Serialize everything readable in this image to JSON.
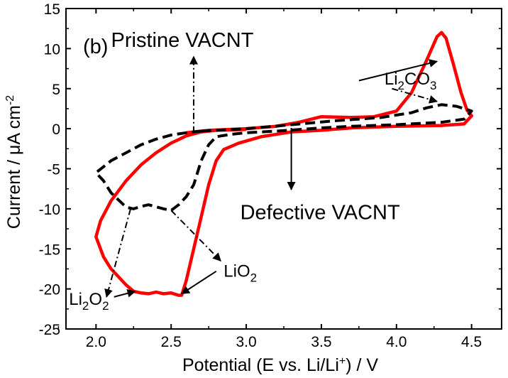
{
  "chart_data": {
    "type": "line",
    "panel_label": "(b)",
    "xlabel": {
      "pre": "Potential (E vs. Li/Li",
      "sup": "+",
      "post": ") / V"
    },
    "ylabel": {
      "pre": "Current / μA cm",
      "sup": "-2"
    },
    "xlim": [
      1.8,
      4.7
    ],
    "ylim": [
      -25,
      15
    ],
    "x_ticks": [
      {
        "v": 2.0,
        "label": "2.0"
      },
      {
        "v": 2.5,
        "label": "2.5"
      },
      {
        "v": 3.0,
        "label": "3.0"
      },
      {
        "v": 3.5,
        "label": "3.5"
      },
      {
        "v": 4.0,
        "label": "4.0"
      },
      {
        "v": 4.5,
        "label": "4.5"
      }
    ],
    "y_ticks": [
      {
        "v": 15,
        "label": "15"
      },
      {
        "v": 10,
        "label": "10"
      },
      {
        "v": 5,
        "label": "5"
      },
      {
        "v": 0,
        "label": "0"
      },
      {
        "v": -5,
        "label": "-5"
      },
      {
        "v": -10,
        "label": "-10"
      },
      {
        "v": -15,
        "label": "-15"
      },
      {
        "v": -20,
        "label": "-20"
      },
      {
        "v": -25,
        "label": "-25"
      }
    ],
    "grid": false,
    "series": [
      {
        "color": "#ff0000",
        "style": "solid",
        "points": [
          [
            2.6,
            -0.5
          ],
          [
            2.75,
            -0.2
          ],
          [
            3.0,
            0.0
          ],
          [
            3.2,
            0.3
          ],
          [
            3.35,
            0.8
          ],
          [
            3.5,
            1.5
          ],
          [
            3.7,
            1.4
          ],
          [
            3.85,
            1.5
          ],
          [
            4.0,
            2.2
          ],
          [
            4.1,
            4.5
          ],
          [
            4.2,
            8.5
          ],
          [
            4.27,
            11.5
          ],
          [
            4.3,
            12.0
          ],
          [
            4.33,
            11.3
          ],
          [
            4.38,
            8.0
          ],
          [
            4.43,
            4.5
          ],
          [
            4.47,
            2.3
          ],
          [
            4.5,
            1.6
          ],
          [
            4.45,
            0.6
          ],
          [
            4.3,
            0.4
          ],
          [
            4.0,
            0.3
          ],
          [
            3.7,
            0.1
          ],
          [
            3.5,
            -0.2
          ],
          [
            3.3,
            -0.4
          ],
          [
            3.1,
            -1.0
          ],
          [
            2.95,
            -1.8
          ],
          [
            2.85,
            -2.6
          ],
          [
            2.8,
            -4.0
          ],
          [
            2.75,
            -7.0
          ],
          [
            2.7,
            -11.0
          ],
          [
            2.65,
            -15.0
          ],
          [
            2.6,
            -19.0
          ],
          [
            2.57,
            -20.8
          ],
          [
            2.55,
            -20.8
          ],
          [
            2.5,
            -20.5
          ],
          [
            2.45,
            -20.6
          ],
          [
            2.4,
            -20.4
          ],
          [
            2.35,
            -20.6
          ],
          [
            2.3,
            -20.5
          ],
          [
            2.25,
            -20.3
          ],
          [
            2.2,
            -19.5
          ],
          [
            2.1,
            -17.5
          ],
          [
            2.05,
            -16.0
          ],
          [
            2.0,
            -13.5
          ],
          [
            2.03,
            -11.5
          ],
          [
            2.1,
            -9.0
          ],
          [
            2.2,
            -6.5
          ],
          [
            2.3,
            -4.5
          ],
          [
            2.4,
            -3.0
          ],
          [
            2.5,
            -1.8
          ],
          [
            2.6,
            -0.9
          ],
          [
            2.7,
            -0.4
          ],
          [
            2.8,
            -0.2
          ],
          [
            3.0,
            -0.1
          ]
        ]
      },
      {
        "color": "#000000",
        "style": "dashed",
        "points": [
          [
            2.7,
            -0.3
          ],
          [
            3.0,
            0.0
          ],
          [
            3.3,
            0.5
          ],
          [
            3.6,
            1.0
          ],
          [
            3.9,
            1.4
          ],
          [
            4.1,
            2.0
          ],
          [
            4.2,
            2.6
          ],
          [
            4.3,
            3.0
          ],
          [
            4.4,
            2.8
          ],
          [
            4.5,
            2.2
          ],
          [
            4.45,
            1.2
          ],
          [
            4.3,
            0.8
          ],
          [
            4.0,
            0.5
          ],
          [
            3.7,
            0.3
          ],
          [
            3.5,
            0.1
          ],
          [
            3.2,
            -0.3
          ],
          [
            3.0,
            -0.5
          ],
          [
            2.9,
            -0.7
          ],
          [
            2.8,
            -1.0
          ],
          [
            2.75,
            -2.0
          ],
          [
            2.7,
            -4.0
          ],
          [
            2.65,
            -7.0
          ],
          [
            2.6,
            -8.5
          ],
          [
            2.55,
            -9.5
          ],
          [
            2.5,
            -10.2
          ],
          [
            2.45,
            -10.0
          ],
          [
            2.35,
            -9.5
          ],
          [
            2.3,
            -9.7
          ],
          [
            2.25,
            -10.0
          ],
          [
            2.2,
            -9.8
          ],
          [
            2.1,
            -8.0
          ],
          [
            2.05,
            -6.5
          ],
          [
            2.0,
            -5.5
          ],
          [
            2.1,
            -4.0
          ],
          [
            2.2,
            -3.0
          ],
          [
            2.3,
            -2.0
          ],
          [
            2.4,
            -1.3
          ],
          [
            2.5,
            -0.8
          ],
          [
            2.6,
            -0.5
          ],
          [
            2.7,
            -0.3
          ]
        ]
      }
    ],
    "annotations": [
      {
        "name": "pristine",
        "text": "Pristine VACNT",
        "x": 2.1,
        "y": 10.2
      },
      {
        "name": "defective",
        "text": "Defective VACNT",
        "x": 2.96,
        "y": -11.3
      },
      {
        "name": "li2co3",
        "pre": "Li",
        "sub1": "2",
        "mid": "CO",
        "sub2": "3",
        "x": 3.92,
        "y": 5.5
      },
      {
        "name": "lio2",
        "pre": "LiO",
        "sub": "2",
        "x": 2.85,
        "y": -18.5
      },
      {
        "name": "li2o2",
        "pre": "Li",
        "sub1": "2",
        "mid": "O",
        "sub2": "2",
        "x": 1.82,
        "y": -22.0
      }
    ],
    "arrows": [
      {
        "from": [
          2.65,
          -0.5
        ],
        "to": [
          2.65,
          9.0
        ],
        "style": "dashdot"
      },
      {
        "from": [
          3.3,
          8.4
        ],
        "to": [
          4.27,
          8.4
        ],
        "style": "solid",
        "draw_from": [
          3.75,
          6.0
        ]
      },
      {
        "from": [
          3.97,
          5.0
        ],
        "to": [
          4.27,
          3.4
        ],
        "style": "dashdot"
      },
      {
        "from": [
          3.3,
          0.1
        ],
        "to": [
          3.3,
          -7.6
        ],
        "style": "solid"
      },
      {
        "from": [
          2.5,
          -10.2
        ],
        "to": [
          2.83,
          -16.5
        ],
        "style": "dashdot"
      },
      {
        "from": [
          2.8,
          -17.8
        ],
        "to": [
          2.57,
          -20.6
        ],
        "style": "solid"
      },
      {
        "from": [
          2.23,
          -10.0
        ],
        "to": [
          2.07,
          -21.0
        ],
        "style": "dashdot"
      },
      {
        "from": [
          2.12,
          -21.0
        ],
        "to": [
          2.26,
          -20.3
        ],
        "style": "solid"
      }
    ]
  }
}
